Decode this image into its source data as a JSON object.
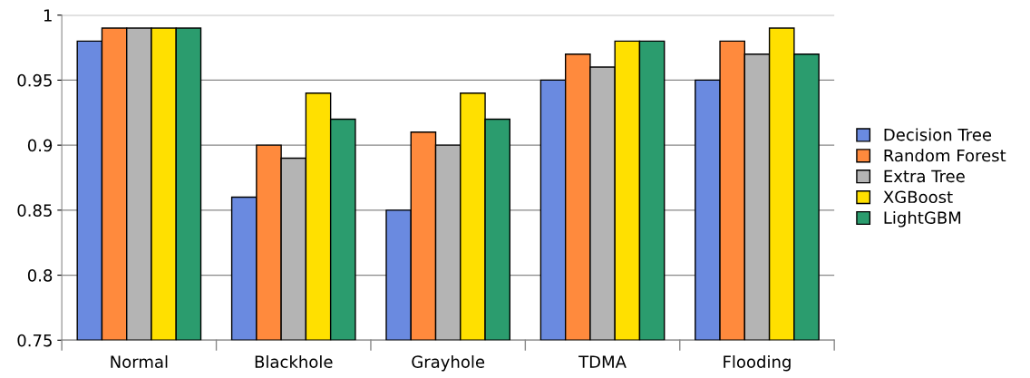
{
  "chart_data": {
    "type": "bar",
    "categories": [
      "Normal",
      "Blackhole",
      "Grayhole",
      "TDMA",
      "Flooding"
    ],
    "series": [
      {
        "name": "Decision Tree",
        "color": "#6a8ae0",
        "values": [
          0.98,
          0.86,
          0.85,
          0.95,
          0.95
        ]
      },
      {
        "name": "Random Forest",
        "color": "#ff8a3d",
        "values": [
          0.99,
          0.9,
          0.91,
          0.97,
          0.98
        ]
      },
      {
        "name": "Extra Tree",
        "color": "#b4b4b4",
        "values": [
          0.99,
          0.89,
          0.9,
          0.96,
          0.97
        ]
      },
      {
        "name": "XGBoost",
        "color": "#ffe000",
        "values": [
          0.99,
          0.94,
          0.94,
          0.98,
          0.99
        ]
      },
      {
        "name": "LightGBM",
        "color": "#2b9c6e",
        "values": [
          0.99,
          0.92,
          0.92,
          0.98,
          0.97
        ]
      }
    ],
    "ylim": [
      0.75,
      1
    ],
    "yticks": [
      {
        "value": 0.75,
        "label": "0.75"
      },
      {
        "value": 0.8,
        "label": "0.8"
      },
      {
        "value": 0.85,
        "label": "0.85"
      },
      {
        "value": 0.9,
        "label": "0.9"
      },
      {
        "value": 0.95,
        "label": "0.95"
      },
      {
        "value": 1,
        "label": "1"
      }
    ],
    "grid": "y",
    "legend": "right"
  }
}
